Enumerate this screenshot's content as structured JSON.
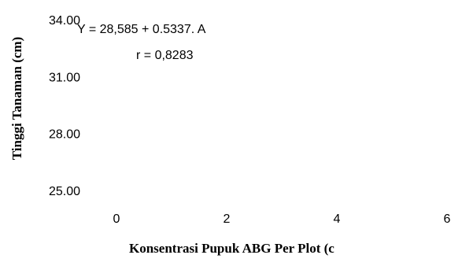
{
  "chart_data": {
    "type": "scatter",
    "title": "",
    "xlabel": "Konsentrasi Pupuk ABG Per Plot (c",
    "ylabel": "Tinggi Tanaman (cm)",
    "xlim": [
      0,
      6
    ],
    "ylim": [
      25,
      34
    ],
    "x_ticks": [
      "0",
      "2",
      "4",
      "6"
    ],
    "y_ticks": [
      "25.00",
      "28.00",
      "31.00",
      "34.00"
    ],
    "grid": false,
    "legend": "none",
    "annotations": {
      "equation": "Y = 28,585 + 0.5337. A",
      "r": "r = 0,8283"
    },
    "series": []
  }
}
